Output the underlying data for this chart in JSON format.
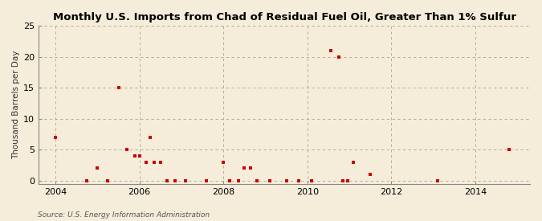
{
  "title": "Monthly U.S. Imports from Chad of Residual Fuel Oil, Greater Than 1% Sulfur",
  "ylabel": "Thousand Barrels per Day",
  "source": "Source: U.S. Energy Information Administration",
  "background_color": "#f5edda",
  "plot_bg_color": "#f5edda",
  "marker_color": "#cc0000",
  "marker_size": 12,
  "xlim": [
    2003.6,
    2015.3
  ],
  "ylim": [
    -0.5,
    25
  ],
  "yticks": [
    0,
    5,
    10,
    15,
    20,
    25
  ],
  "xticks": [
    2004,
    2006,
    2008,
    2010,
    2012,
    2014
  ],
  "data_points": [
    [
      2004.0,
      7
    ],
    [
      2004.75,
      0
    ],
    [
      2005.0,
      2
    ],
    [
      2005.25,
      0
    ],
    [
      2005.5,
      15
    ],
    [
      2005.7,
      5
    ],
    [
      2005.9,
      4
    ],
    [
      2006.0,
      4
    ],
    [
      2006.15,
      3
    ],
    [
      2006.25,
      7
    ],
    [
      2006.35,
      3
    ],
    [
      2006.5,
      3
    ],
    [
      2006.65,
      0
    ],
    [
      2006.85,
      0
    ],
    [
      2007.1,
      0
    ],
    [
      2007.6,
      0
    ],
    [
      2008.0,
      3
    ],
    [
      2008.15,
      0
    ],
    [
      2008.35,
      0
    ],
    [
      2008.5,
      2
    ],
    [
      2008.65,
      2
    ],
    [
      2008.8,
      0
    ],
    [
      2009.1,
      0
    ],
    [
      2009.5,
      0
    ],
    [
      2009.8,
      0
    ],
    [
      2010.1,
      0
    ],
    [
      2010.55,
      21
    ],
    [
      2010.75,
      20
    ],
    [
      2010.85,
      0
    ],
    [
      2010.95,
      0
    ],
    [
      2011.1,
      3
    ],
    [
      2011.5,
      1
    ],
    [
      2013.1,
      0
    ],
    [
      2014.8,
      5
    ]
  ]
}
